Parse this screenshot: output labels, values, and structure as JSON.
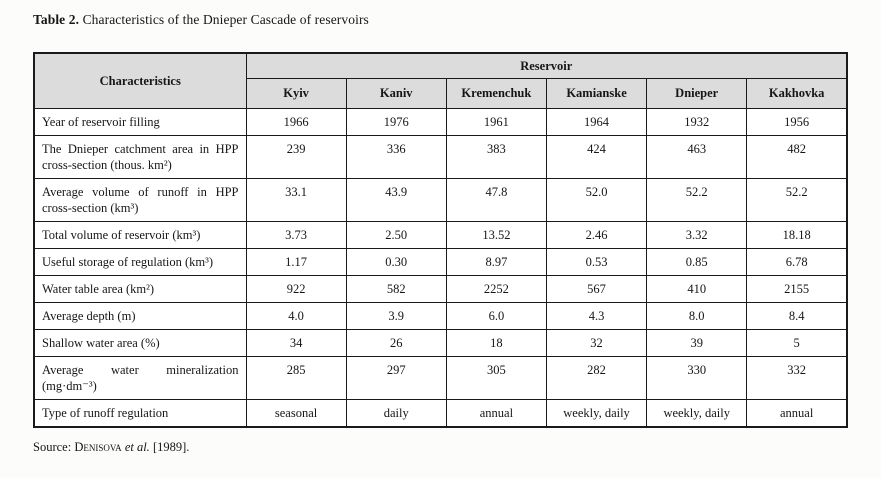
{
  "caption": {
    "number": "Table 2.",
    "text": "Characteristics of the Dnieper Cascade of reservoirs"
  },
  "source": {
    "prefix": "Source: ",
    "author": "Denisova",
    "etal": "et al.",
    "year": "[1989]."
  },
  "chart_data": {
    "type": "table",
    "corner_header": "Characteristics",
    "group_header": "Reservoir",
    "columns": [
      "Kyiv",
      "Kaniv",
      "Kremenchuk",
      "Kamianske",
      "Dnieper",
      "Kakhovka"
    ],
    "rows": [
      {
        "label": "Year of reservoir filling",
        "values": [
          "1966",
          "1976",
          "1961",
          "1964",
          "1932",
          "1956"
        ]
      },
      {
        "label": "The Dnieper catchment area in HPP cross-section (thous. km²)",
        "values": [
          "239",
          "336",
          "383",
          "424",
          "463",
          "482"
        ]
      },
      {
        "label": "Average volume of runoff in HPP cross-section (km³)",
        "values": [
          "33.1",
          "43.9",
          "47.8",
          "52.0",
          "52.2",
          "52.2"
        ]
      },
      {
        "label": "Total volume of reservoir (km³)",
        "values": [
          "3.73",
          "2.50",
          "13.52",
          "2.46",
          "3.32",
          "18.18"
        ]
      },
      {
        "label": "Useful storage of regulation (km³)",
        "values": [
          "1.17",
          "0.30",
          "8.97",
          "0.53",
          "0.85",
          "6.78"
        ]
      },
      {
        "label": "Water table area (km²)",
        "values": [
          "922",
          "582",
          "2252",
          "567",
          "410",
          "2155"
        ]
      },
      {
        "label": "Average depth (m)",
        "values": [
          "4.0",
          "3.9",
          "6.0",
          "4.3",
          "8.0",
          "8.4"
        ]
      },
      {
        "label": "Shallow water area (%)",
        "values": [
          "34",
          "26",
          "18",
          "32",
          "39",
          "5"
        ]
      },
      {
        "label": "Average water mineralization (mg·dm⁻³)",
        "values": [
          "285",
          "297",
          "305",
          "282",
          "330",
          "332"
        ]
      },
      {
        "label": "Type of runoff regulation",
        "values": [
          "seasonal",
          "daily",
          "annual",
          "weekly, daily",
          "weekly, daily",
          "annual"
        ]
      }
    ]
  }
}
